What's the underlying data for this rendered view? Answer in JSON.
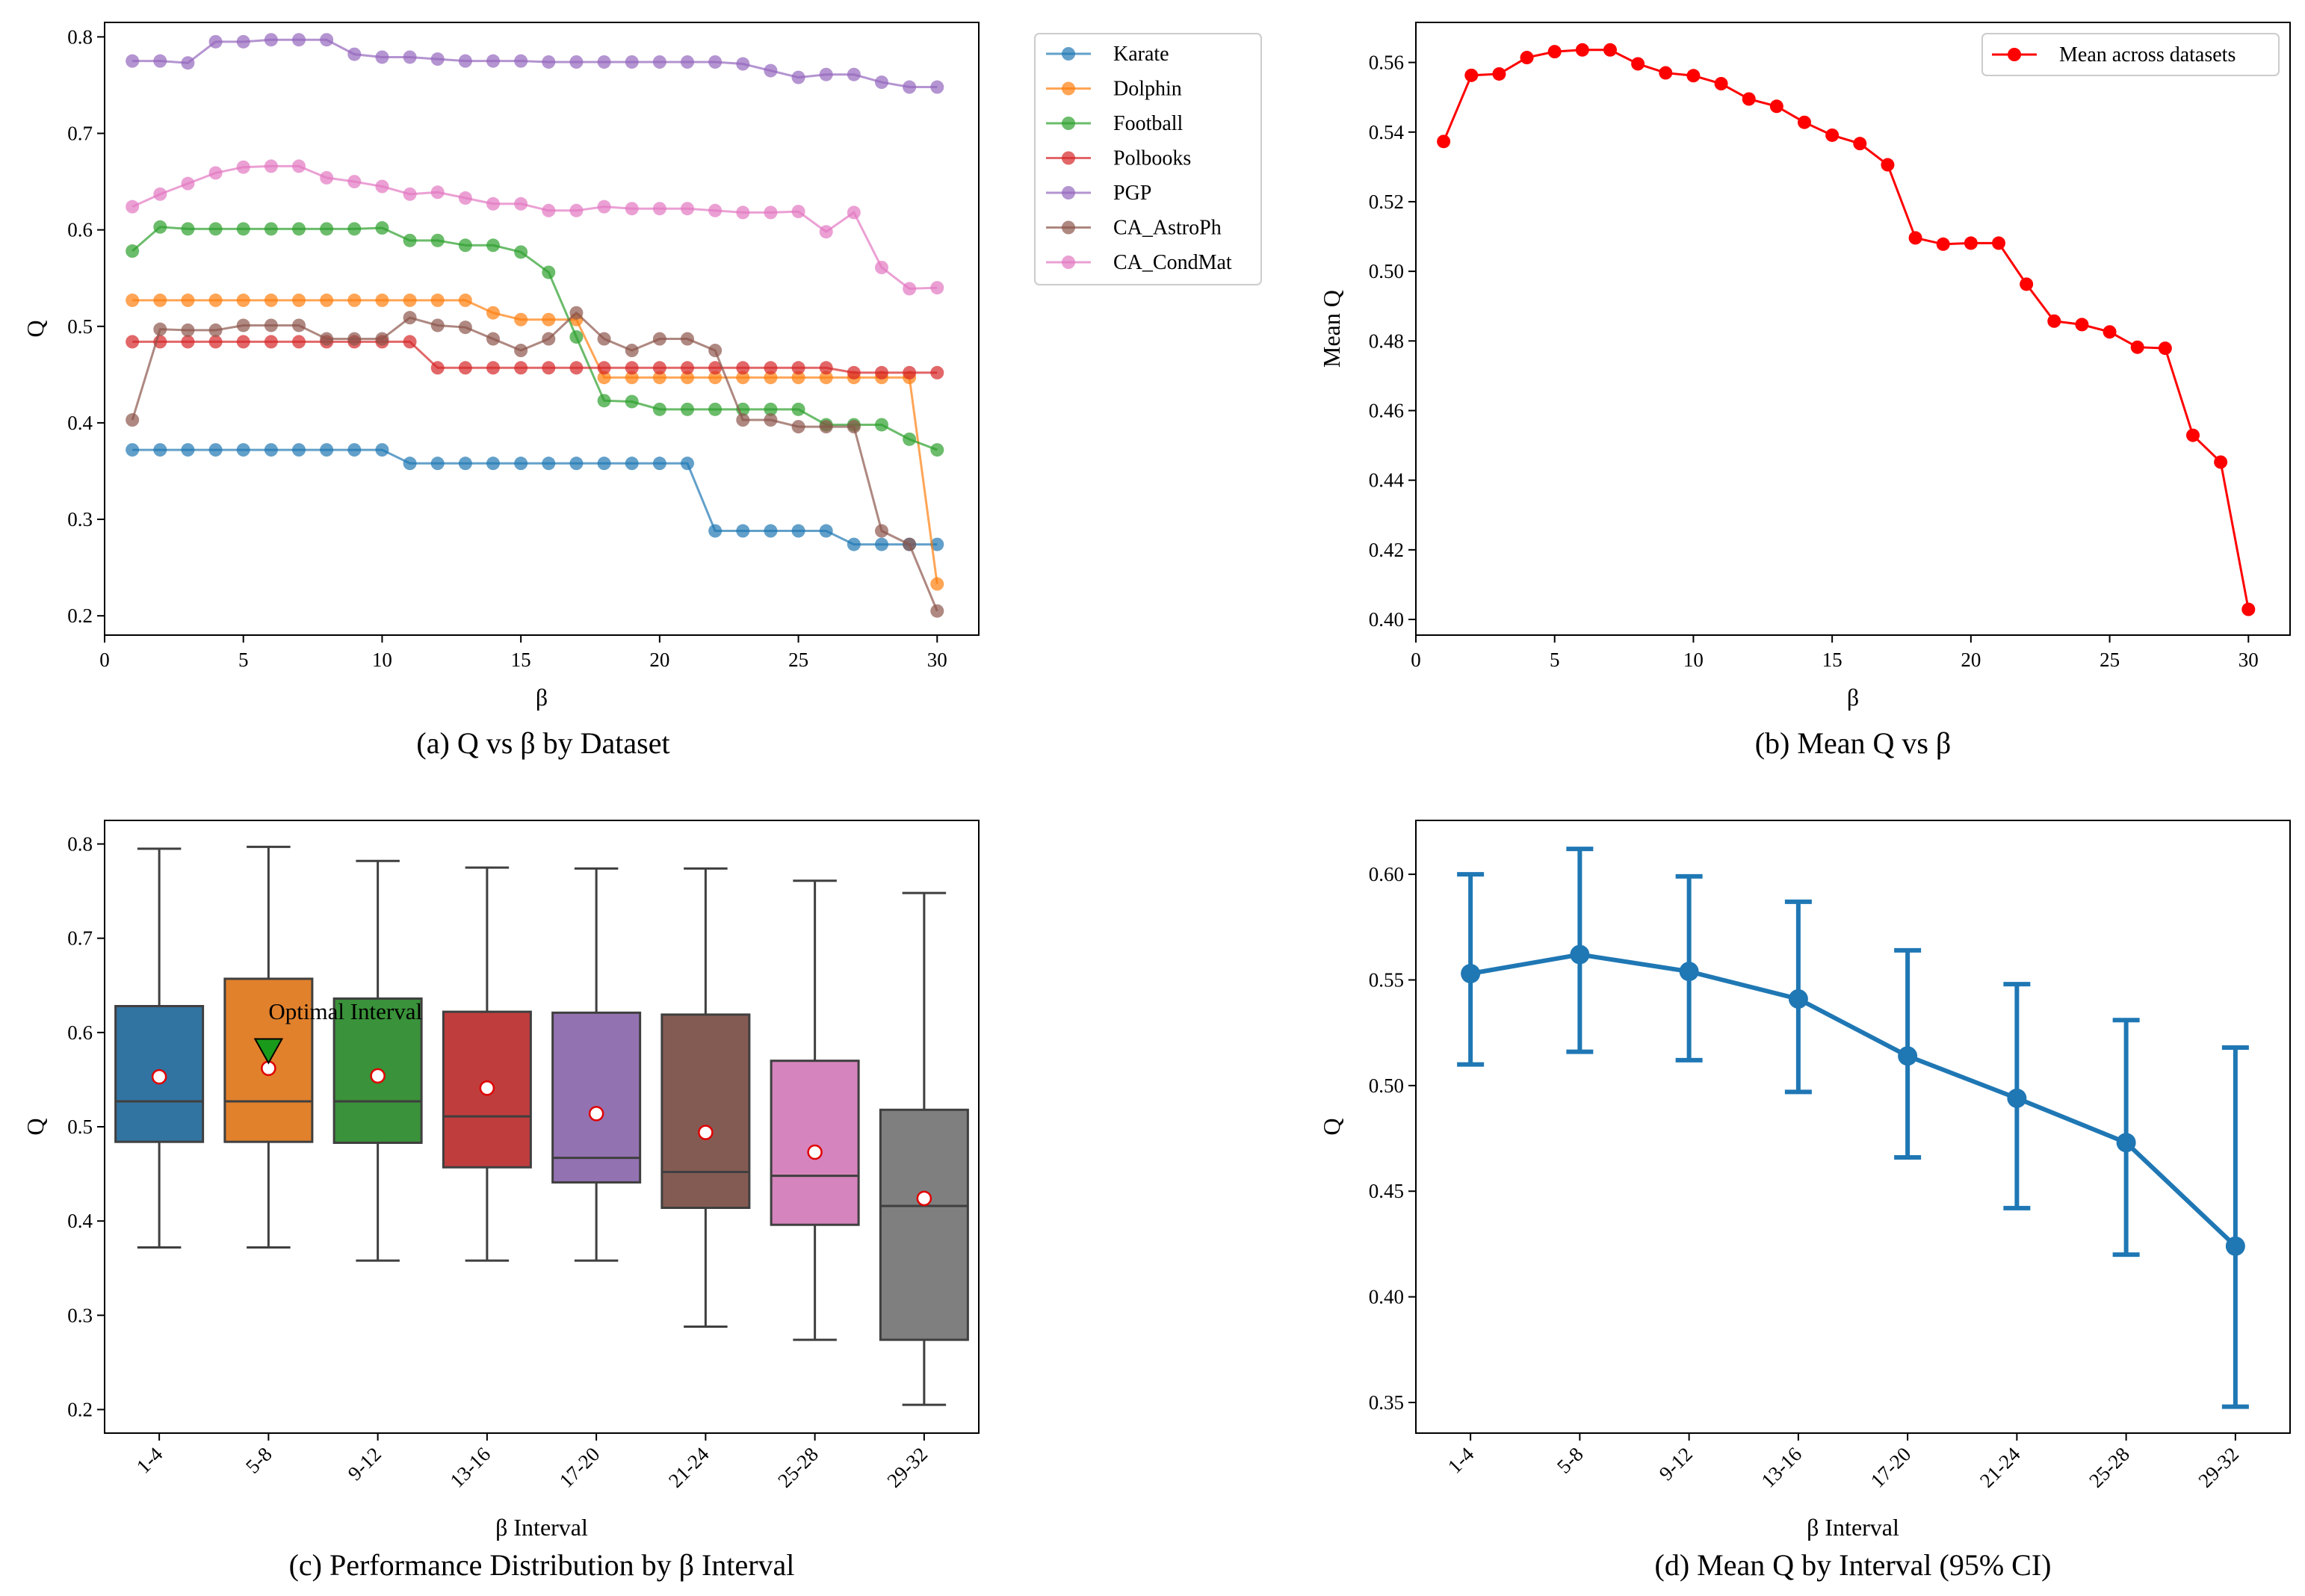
{
  "colors": {
    "Karate": "#1f77b4",
    "Dolphin": "#ff7f0e",
    "Football": "#2ca02c",
    "Polbooks": "#d62728",
    "PGP": "#9467bd",
    "CA_AstroPh": "#8c564b",
    "CA_CondMat": "#e377c2",
    "box_fills": [
      "#3274a1",
      "#e1812c",
      "#3a923a",
      "#c03d3e",
      "#9372b2",
      "#845b53",
      "#d684bd",
      "#7f7f7f"
    ],
    "mean_line": "#ff0000",
    "errorbar": "#1f77b4",
    "marker_green": "#1a9a1a"
  },
  "chart_data": [
    {
      "id": "a",
      "type": "line",
      "caption": "(a) Q vs β by Dataset",
      "xlabel": "β",
      "ylabel": "Q",
      "xlim": [
        0,
        31.5
      ],
      "ylim": [
        0.18,
        0.815
      ],
      "xticks": [
        0,
        5,
        10,
        15,
        20,
        25,
        30
      ],
      "xtick_labels": [
        "0",
        "5",
        "10",
        "15",
        "20",
        "25",
        "30"
      ],
      "yticks": [
        0.2,
        0.3,
        0.4,
        0.5,
        0.6,
        0.7,
        0.8
      ],
      "ytick_labels": [
        "0.2",
        "0.3",
        "0.4",
        "0.5",
        "0.6",
        "0.7",
        "0.8"
      ],
      "legend_position": "outside-right",
      "x": [
        1,
        2,
        3,
        4,
        5,
        6,
        7,
        8,
        9,
        10,
        11,
        12,
        13,
        14,
        15,
        16,
        17,
        18,
        19,
        20,
        21,
        22,
        23,
        24,
        25,
        26,
        27,
        28,
        29,
        30
      ],
      "series": [
        {
          "name": "Karate",
          "values": [
            0.372,
            0.372,
            0.372,
            0.372,
            0.372,
            0.372,
            0.372,
            0.372,
            0.372,
            0.372,
            0.358,
            0.358,
            0.358,
            0.358,
            0.358,
            0.358,
            0.358,
            0.358,
            0.358,
            0.358,
            0.358,
            0.288,
            0.288,
            0.288,
            0.288,
            0.288,
            0.274,
            0.274,
            0.274,
            0.274
          ]
        },
        {
          "name": "Dolphin",
          "values": [
            0.527,
            0.527,
            0.527,
            0.527,
            0.527,
            0.527,
            0.527,
            0.527,
            0.527,
            0.527,
            0.527,
            0.527,
            0.527,
            0.514,
            0.507,
            0.507,
            0.507,
            0.447,
            0.447,
            0.447,
            0.447,
            0.447,
            0.447,
            0.447,
            0.447,
            0.447,
            0.447,
            0.447,
            0.447,
            0.233
          ]
        },
        {
          "name": "Football",
          "values": [
            0.578,
            0.603,
            0.601,
            0.601,
            0.601,
            0.601,
            0.601,
            0.601,
            0.601,
            0.602,
            0.589,
            0.589,
            0.584,
            0.584,
            0.577,
            0.556,
            0.489,
            0.423,
            0.422,
            0.414,
            0.414,
            0.414,
            0.414,
            0.414,
            0.414,
            0.398,
            0.398,
            0.398,
            0.383,
            0.372
          ]
        },
        {
          "name": "Polbooks",
          "values": [
            0.484,
            0.484,
            0.484,
            0.484,
            0.484,
            0.484,
            0.484,
            0.484,
            0.484,
            0.484,
            0.484,
            0.457,
            0.457,
            0.457,
            0.457,
            0.457,
            0.457,
            0.457,
            0.457,
            0.457,
            0.457,
            0.457,
            0.457,
            0.457,
            0.457,
            0.457,
            0.452,
            0.452,
            0.452,
            0.452
          ]
        },
        {
          "name": "PGP",
          "values": [
            0.775,
            0.775,
            0.773,
            0.795,
            0.795,
            0.797,
            0.797,
            0.797,
            0.782,
            0.779,
            0.779,
            0.777,
            0.775,
            0.775,
            0.775,
            0.774,
            0.774,
            0.774,
            0.774,
            0.774,
            0.774,
            0.774,
            0.772,
            0.765,
            0.758,
            0.761,
            0.761,
            0.753,
            0.748,
            0.748
          ]
        },
        {
          "name": "CA_AstroPh",
          "values": [
            0.403,
            0.497,
            0.496,
            0.496,
            0.501,
            0.501,
            0.501,
            0.487,
            0.487,
            0.487,
            0.509,
            0.501,
            0.499,
            0.487,
            0.475,
            0.487,
            0.514,
            0.487,
            0.475,
            0.487,
            0.487,
            0.475,
            0.403,
            0.403,
            0.396,
            0.396,
            0.396,
            0.288,
            0.274,
            0.205
          ]
        },
        {
          "name": "CA_CondMat",
          "values": [
            0.624,
            0.637,
            0.648,
            0.659,
            0.665,
            0.666,
            0.666,
            0.654,
            0.65,
            0.645,
            0.637,
            0.639,
            0.633,
            0.627,
            0.627,
            0.62,
            0.62,
            0.624,
            0.622,
            0.622,
            0.622,
            0.62,
            0.618,
            0.618,
            0.619,
            0.598,
            0.618,
            0.561,
            0.539,
            0.54
          ]
        }
      ]
    },
    {
      "id": "b",
      "type": "line",
      "caption": "(b) Mean Q vs β",
      "xlabel": "β",
      "ylabel": "Mean Q",
      "xlim": [
        0,
        31.5
      ],
      "ylim": [
        0.3955,
        0.5715
      ],
      "xticks": [
        0,
        5,
        10,
        15,
        20,
        25,
        30
      ],
      "xtick_labels": [
        "0",
        "5",
        "10",
        "15",
        "20",
        "25",
        "30"
      ],
      "yticks": [
        0.4,
        0.42,
        0.44,
        0.46,
        0.48,
        0.5,
        0.52,
        0.54,
        0.56
      ],
      "ytick_labels": [
        "0.40",
        "0.42",
        "0.44",
        "0.46",
        "0.48",
        "0.50",
        "0.52",
        "0.54",
        "0.56"
      ],
      "legend_position": "top-right",
      "x": [
        1,
        2,
        3,
        4,
        5,
        6,
        7,
        8,
        9,
        10,
        11,
        12,
        13,
        14,
        15,
        16,
        17,
        18,
        19,
        20,
        21,
        22,
        23,
        24,
        25,
        26,
        27,
        28,
        29,
        30
      ],
      "series": [
        {
          "name": "Mean across datasets",
          "values": [
            0.5373,
            0.5563,
            0.5567,
            0.5614,
            0.5631,
            0.5636,
            0.5636,
            0.5596,
            0.557,
            0.5562,
            0.5539,
            0.5495,
            0.5474,
            0.5428,
            0.5391,
            0.5367,
            0.5306,
            0.5096,
            0.5078,
            0.5081,
            0.5081,
            0.4963,
            0.4857,
            0.4847,
            0.4826,
            0.4782,
            0.4779,
            0.4529,
            0.4452,
            0.4029
          ]
        }
      ]
    },
    {
      "id": "c",
      "type": "box",
      "caption": "(c) Performance Distribution by β Interval",
      "xlabel": "β Interval",
      "ylabel": "Q",
      "ylim": [
        0.175,
        0.825
      ],
      "yticks": [
        0.2,
        0.3,
        0.4,
        0.5,
        0.6,
        0.7,
        0.8
      ],
      "ytick_labels": [
        "0.2",
        "0.3",
        "0.4",
        "0.5",
        "0.6",
        "0.7",
        "0.8"
      ],
      "categories": [
        "1-4",
        "5-8",
        "9-12",
        "13-16",
        "17-20",
        "21-24",
        "25-28",
        "29-32"
      ],
      "boxes": [
        {
          "whislo": 0.372,
          "q1": 0.484,
          "med": 0.527,
          "q3": 0.628,
          "whishi": 0.795,
          "mean": 0.553
        },
        {
          "whislo": 0.372,
          "q1": 0.484,
          "med": 0.527,
          "q3": 0.657,
          "whishi": 0.797,
          "mean": 0.562
        },
        {
          "whislo": 0.358,
          "q1": 0.483,
          "med": 0.527,
          "q3": 0.636,
          "whishi": 0.782,
          "mean": 0.554
        },
        {
          "whislo": 0.358,
          "q1": 0.457,
          "med": 0.511,
          "q3": 0.622,
          "whishi": 0.775,
          "mean": 0.541
        },
        {
          "whislo": 0.358,
          "q1": 0.441,
          "med": 0.467,
          "q3": 0.621,
          "whishi": 0.774,
          "mean": 0.514
        },
        {
          "whislo": 0.288,
          "q1": 0.414,
          "med": 0.452,
          "q3": 0.619,
          "whishi": 0.774,
          "mean": 0.494
        },
        {
          "whislo": 0.274,
          "q1": 0.396,
          "med": 0.448,
          "q3": 0.57,
          "whishi": 0.761,
          "mean": 0.473
        },
        {
          "whislo": 0.205,
          "q1": 0.274,
          "med": 0.416,
          "q3": 0.518,
          "whishi": 0.748,
          "mean": 0.424
        }
      ],
      "annotation": {
        "text": "Optimal Interval",
        "category_index": 1,
        "value": 0.582
      }
    },
    {
      "id": "d",
      "type": "errorbar",
      "caption": "(d) Mean Q by Interval (95% CI)",
      "xlabel": "β Interval",
      "ylabel": "Q",
      "ylim": [
        0.3355,
        0.6255
      ],
      "yticks": [
        0.35,
        0.4,
        0.45,
        0.5,
        0.55,
        0.6
      ],
      "ytick_labels": [
        "0.35",
        "0.40",
        "0.45",
        "0.50",
        "0.55",
        "0.60"
      ],
      "categories": [
        "1-4",
        "5-8",
        "9-12",
        "13-16",
        "17-20",
        "21-24",
        "25-28",
        "29-32"
      ],
      "values": [
        0.553,
        0.562,
        0.554,
        0.541,
        0.514,
        0.494,
        0.473,
        0.424
      ],
      "ci_low": [
        0.51,
        0.516,
        0.512,
        0.497,
        0.466,
        0.442,
        0.42,
        0.348
      ],
      "ci_high": [
        0.6,
        0.612,
        0.599,
        0.587,
        0.564,
        0.548,
        0.531,
        0.518
      ]
    }
  ]
}
